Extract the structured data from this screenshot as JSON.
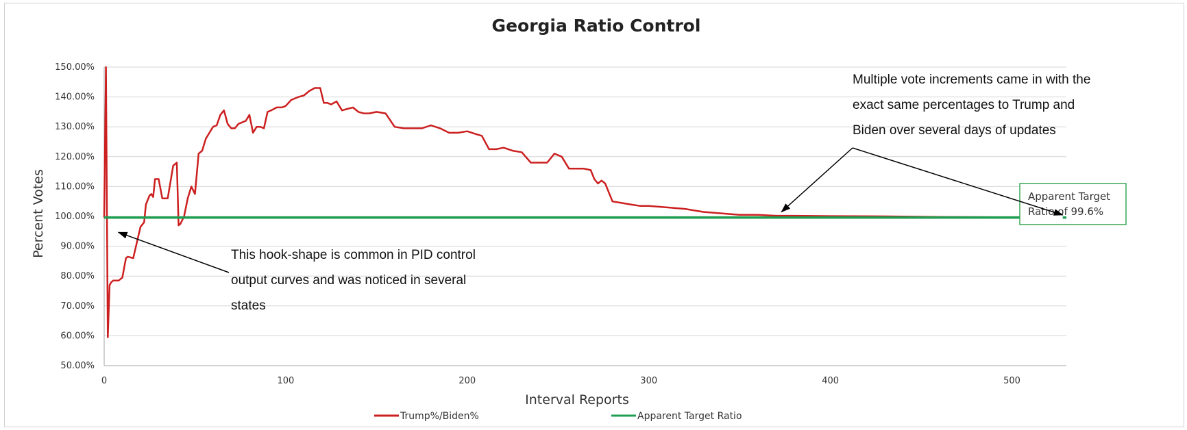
{
  "chart_data": {
    "type": "line",
    "title": "Georgia Ratio Control",
    "xlabel": "Interval Reports",
    "ylabel": "Percent Votes",
    "xlim": [
      0,
      530
    ],
    "ylim": [
      50,
      150
    ],
    "x_ticks": [
      "0",
      "100",
      "200",
      "300",
      "400",
      "500"
    ],
    "y_ticks": [
      "50.00%",
      "60.00%",
      "70.00%",
      "80.00%",
      "90.00%",
      "100.00%",
      "110.00%",
      "120.00%",
      "130.00%",
      "140.00%",
      "150.00%"
    ],
    "grid": "horizontal",
    "legend_position": "bottom",
    "series": [
      {
        "name": "Trump%/Biden%",
        "color": "#cc1f1f",
        "x": [
          0,
          1,
          2,
          3,
          4,
          5,
          8,
          10,
          12,
          13,
          16,
          20,
          22,
          23,
          25,
          26,
          27,
          28,
          30,
          32,
          35,
          38,
          40,
          41,
          42,
          44,
          46,
          48,
          50,
          52,
          54,
          56,
          58,
          60,
          62,
          64,
          66,
          68,
          70,
          72,
          74,
          76,
          78,
          80,
          82,
          84,
          86,
          88,
          90,
          92,
          95,
          98,
          100,
          103,
          107,
          110,
          113,
          116,
          119,
          121,
          123,
          125,
          128,
          131,
          134,
          137,
          140,
          143,
          146,
          150,
          155,
          160,
          165,
          170,
          175,
          180,
          185,
          190,
          195,
          200,
          205,
          208,
          212,
          216,
          220,
          225,
          230,
          235,
          240,
          244,
          248,
          252,
          256,
          260,
          264,
          268,
          270,
          272,
          274,
          276,
          280,
          285,
          290,
          295,
          300,
          310,
          320,
          330,
          340,
          350,
          360,
          370,
          380,
          400,
          430,
          460,
          490,
          530
        ],
        "values": [
          99.6,
          150,
          59.5,
          77,
          78,
          78.5,
          78.5,
          79.5,
          86,
          86.5,
          86,
          96.5,
          98,
          104,
          107,
          107.5,
          106.5,
          112.5,
          112.5,
          106,
          106,
          117,
          118,
          97,
          97.5,
          100,
          106,
          110,
          107.5,
          121,
          122,
          126,
          128,
          130,
          130.5,
          134,
          135.5,
          131,
          129.5,
          129.5,
          131,
          131.5,
          132,
          134,
          128,
          130,
          130,
          129.5,
          135,
          135.5,
          136.5,
          136.5,
          137,
          139,
          140,
          140.5,
          142,
          143,
          143,
          138,
          138,
          137.5,
          138.5,
          135.5,
          136,
          136.5,
          135,
          134.5,
          134.5,
          135,
          134.5,
          130,
          129.5,
          129.5,
          129.5,
          130.5,
          129.5,
          128,
          128,
          128.5,
          127.5,
          127,
          122.5,
          122.5,
          123,
          122,
          121.5,
          118,
          118,
          118,
          121,
          120,
          116,
          116,
          116,
          115.5,
          112.5,
          111,
          112,
          111,
          105,
          104.5,
          104,
          103.5,
          103.5,
          103,
          102.5,
          101.5,
          101,
          100.5,
          100.5,
          100.2,
          100.2,
          100.1,
          100,
          99.8,
          99.7,
          99.6
        ]
      },
      {
        "name": "Apparent Target Ratio",
        "color": "#1e9e50",
        "x": [
          0,
          530
        ],
        "values": [
          99.6,
          99.6
        ]
      }
    ],
    "annotations": [
      {
        "lines": [
          "Multiple vote increments came in with the",
          "exact same percentages to Trump and",
          "Biden over several days of updates"
        ],
        "arrow_targets": [
          [
            373,
            101
          ],
          [
            528,
            100
          ]
        ]
      },
      {
        "lines": [
          "This hook-shape is common in PID control",
          "output curves and was noticed in several",
          "states"
        ],
        "arrow_targets": [
          [
            4,
            94
          ]
        ]
      }
    ],
    "target_box": {
      "lines": [
        "Apparent Target",
        "Ratio of 99.6%"
      ],
      "border_color": "#3aa655"
    }
  }
}
